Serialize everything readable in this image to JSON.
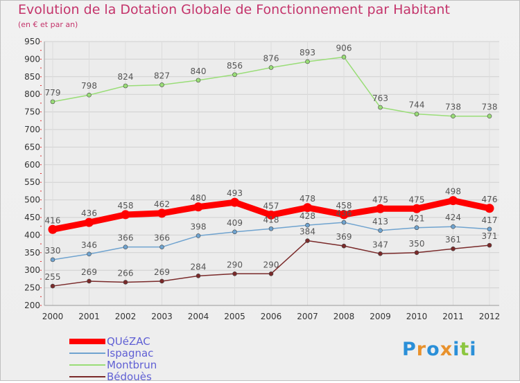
{
  "title": "Evolution de la Dotation Globale de Fonctionnement par Habitant",
  "subtitle": "(en € et par an)",
  "logo": {
    "letters": [
      "P",
      "r",
      "o",
      "x",
      "i",
      "t",
      "i"
    ],
    "colors": [
      "#2a8fd8",
      "#e8912c",
      "#2a8fd8",
      "#e8912c",
      "#2a8fd8",
      "#8cc63f",
      "#2a8fd8"
    ]
  },
  "chart_data": {
    "type": "line",
    "x": [
      "2000",
      "2001",
      "2002",
      "2003",
      "2004",
      "2005",
      "2006",
      "2007",
      "2008",
      "2009",
      "2010",
      "2011",
      "2012"
    ],
    "ylim": [
      200,
      950
    ],
    "yticks": [
      200,
      250,
      300,
      350,
      400,
      450,
      500,
      550,
      600,
      650,
      700,
      750,
      800,
      850,
      900,
      950
    ],
    "grid": true,
    "legend_position": "bottom-left",
    "series": [
      {
        "name": "QUéZAC",
        "color": "#ff0000",
        "values": [
          416,
          436,
          458,
          462,
          480,
          493,
          457,
          478,
          458,
          475,
          475,
          498,
          476
        ]
      },
      {
        "name": "Ispagnac",
        "color": "#6fa3cf",
        "values": [
          330,
          346,
          366,
          366,
          398,
          409,
          418,
          428,
          436,
          413,
          421,
          424,
          417
        ]
      },
      {
        "name": "Montbrun",
        "color": "#99dd77",
        "values": [
          779,
          798,
          824,
          827,
          840,
          856,
          876,
          893,
          906,
          763,
          744,
          738,
          738
        ]
      },
      {
        "name": "Bédouès",
        "color": "#7a2a2a",
        "values": [
          255,
          269,
          266,
          269,
          284,
          290,
          290,
          384,
          369,
          347,
          350,
          361,
          371
        ]
      }
    ]
  }
}
